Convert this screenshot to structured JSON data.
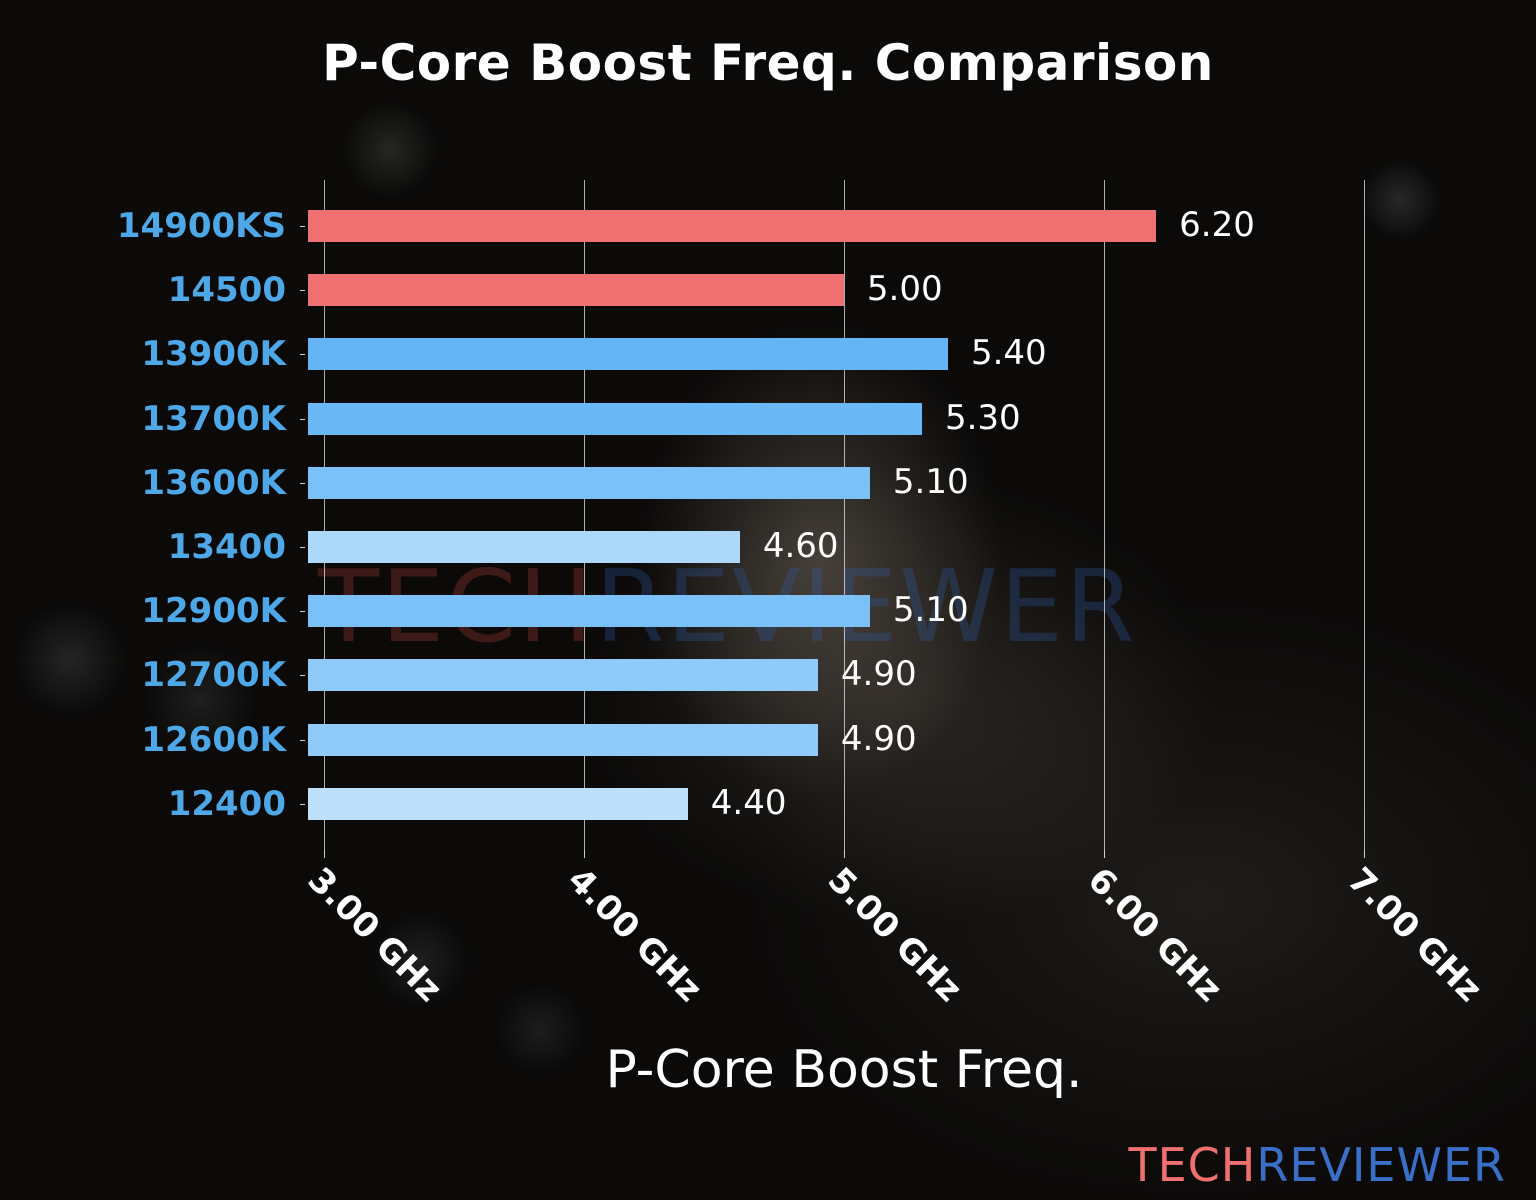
{
  "title": "P-Core Boost Freq. Comparison",
  "watermark": {
    "part1": "TECH",
    "part2": "REVIEWER"
  },
  "brand": {
    "part1": "TECH",
    "part2": "REVIEWER",
    "color1": "#f07070",
    "color2": "#3a6fc8"
  },
  "chart_data": {
    "type": "bar",
    "orientation": "horizontal",
    "title": "P-Core Boost Freq. Comparison",
    "xlabel": "P-Core Boost Freq.",
    "ylabel": "",
    "categories": [
      "14900KS",
      "14500",
      "13900K",
      "13700K",
      "13600K",
      "13400",
      "12900K",
      "12700K",
      "12600K",
      "12400"
    ],
    "values": [
      6.2,
      5.0,
      5.4,
      5.3,
      5.1,
      4.6,
      5.1,
      4.9,
      4.9,
      4.4
    ],
    "value_labels": [
      "6.20",
      "5.00",
      "5.40",
      "5.30",
      "5.10",
      "4.60",
      "5.10",
      "4.90",
      "4.90",
      "4.40"
    ],
    "bar_colors": [
      "#f07070",
      "#f07070",
      "#64b4f6",
      "#6ab8f6",
      "#7cc0f8",
      "#acd8fa",
      "#7cc0f8",
      "#90caf9",
      "#90caf9",
      "#bde0fc"
    ],
    "xticks": [
      3.0,
      4.0,
      5.0,
      6.0,
      7.0
    ],
    "xtick_labels": [
      "3.00 GHz",
      "4.00 GHz",
      "5.00 GHz",
      "6.00 GHz",
      "7.00 GHz"
    ],
    "xlim": [
      2.94,
      7.0
    ],
    "grid": "vertical",
    "legend": null
  }
}
